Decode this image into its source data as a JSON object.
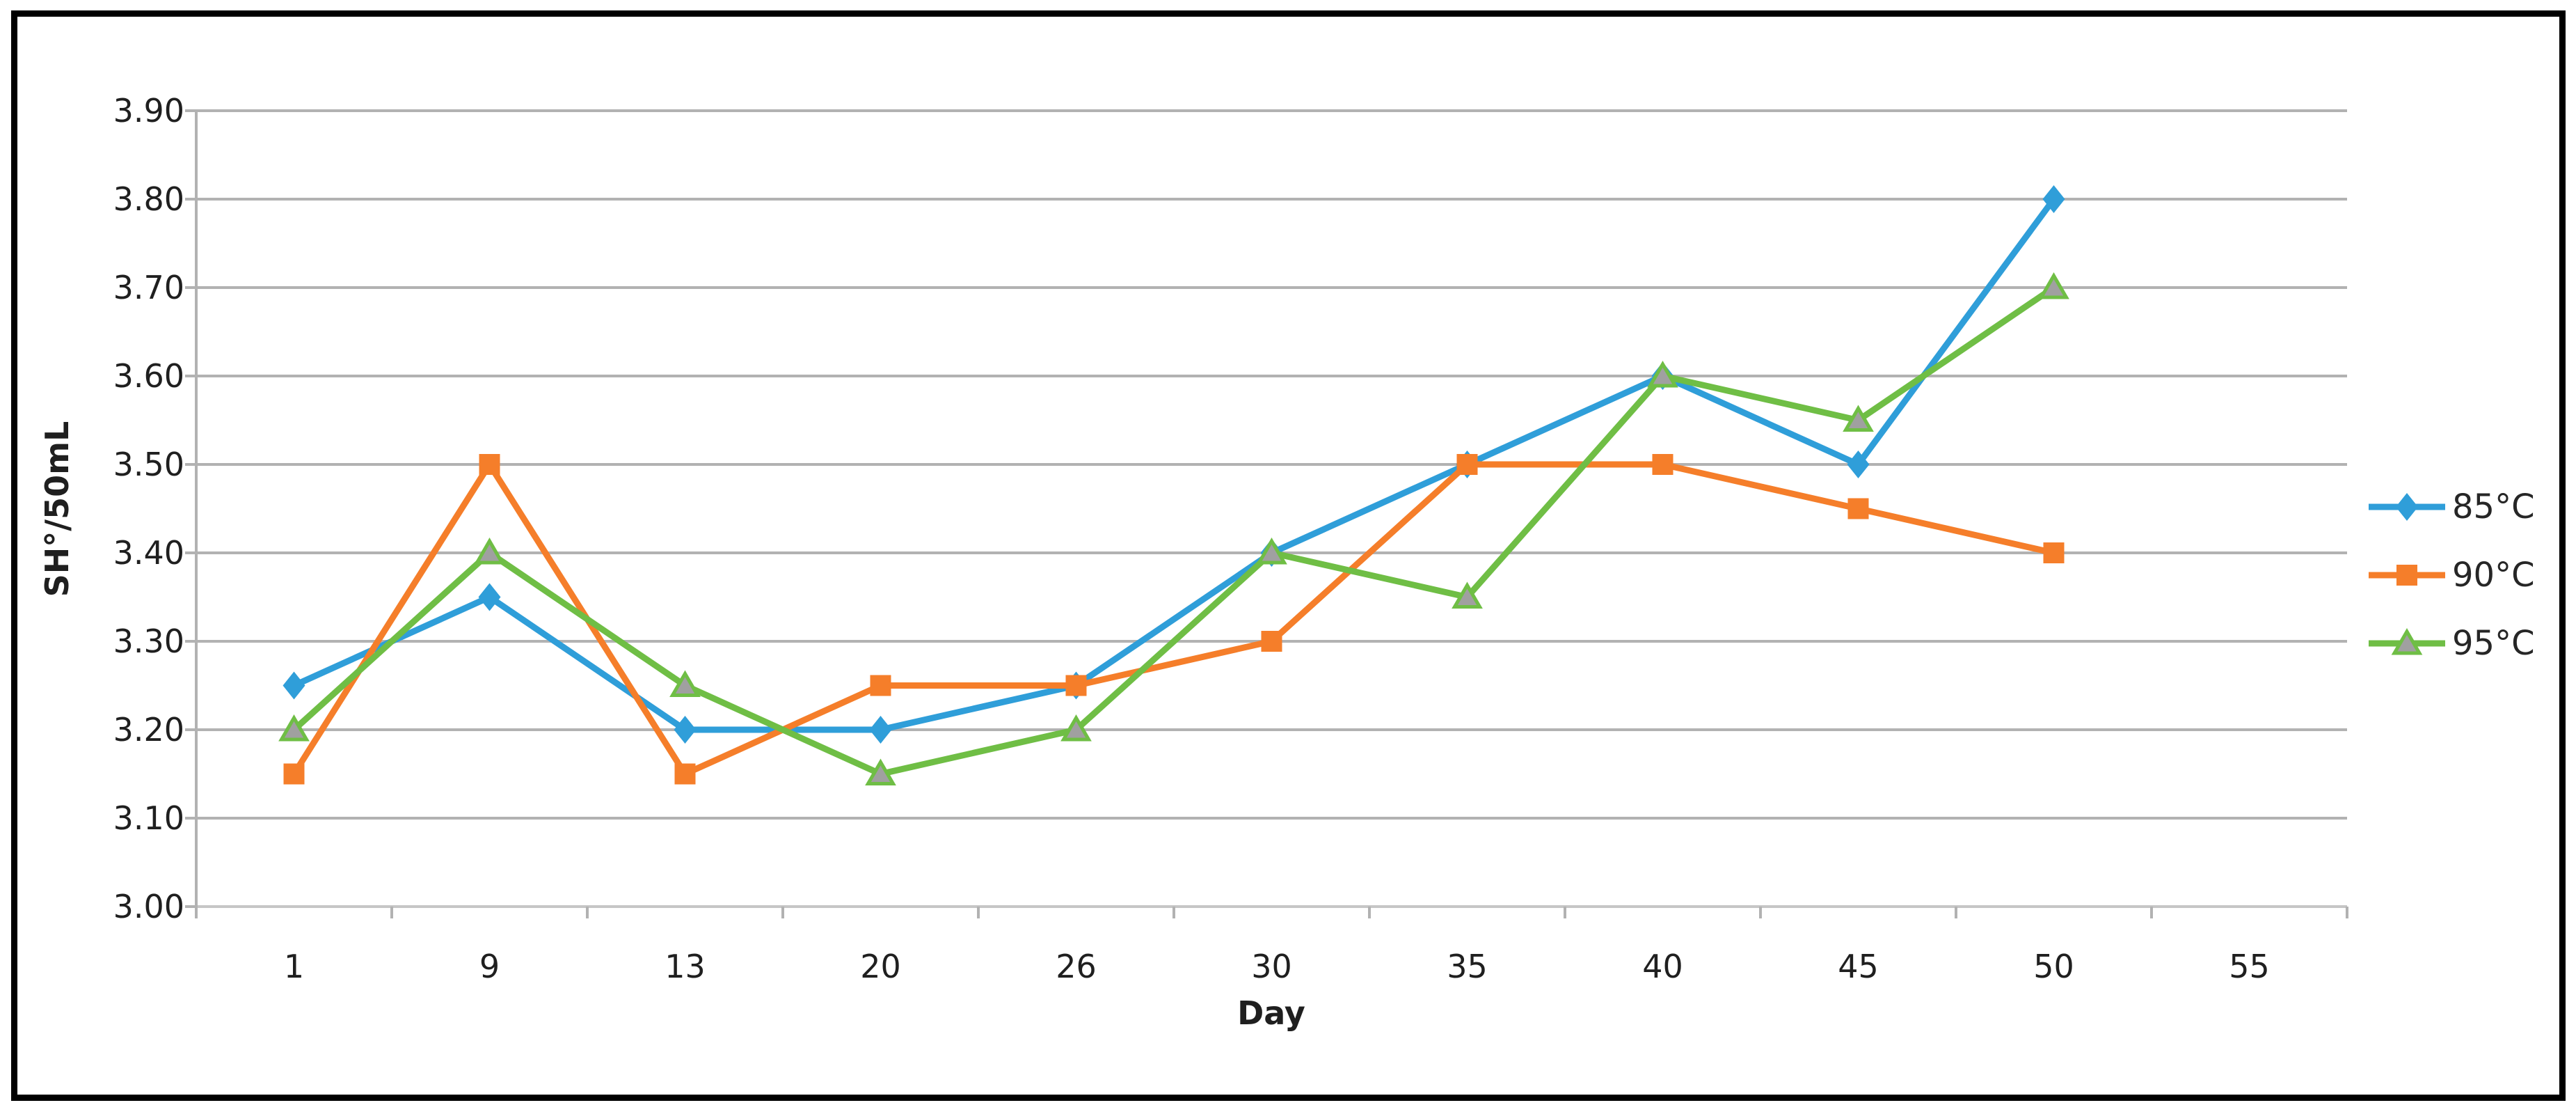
{
  "figure": {
    "background": "#ffffff",
    "frame_color": "#000000"
  },
  "chart_data": {
    "type": "line",
    "title": "",
    "xlabel": "Day",
    "ylabel": "SH°/50mL",
    "categories": [
      "1",
      "9",
      "13",
      "20",
      "26",
      "30",
      "35",
      "40",
      "45",
      "50",
      "55"
    ],
    "y_tick_labels": [
      "3.90",
      "3.80",
      "3.70",
      "3.60",
      "3.50",
      "3.40",
      "3.30",
      "3.20",
      "3.10",
      "3.00"
    ],
    "ylim": [
      3.0,
      3.9
    ],
    "y_step": 0.1,
    "grid": "horizontal",
    "legend_position": "right",
    "series": [
      {
        "name": "85°C",
        "marker": "diamond",
        "color": "#2f9ed9",
        "marker_fill": "#2f9ed9",
        "values": [
          3.25,
          3.35,
          3.2,
          3.2,
          3.25,
          3.4,
          3.5,
          3.6,
          3.5,
          3.8,
          null
        ]
      },
      {
        "name": "90°C",
        "marker": "square",
        "color": "#f57e2a",
        "marker_fill": "#f57e2a",
        "values": [
          3.15,
          3.5,
          3.15,
          3.25,
          3.25,
          3.3,
          3.5,
          3.5,
          3.45,
          3.4,
          null
        ]
      },
      {
        "name": "95°C",
        "marker": "triangle",
        "color": "#6fbe45",
        "marker_fill": "#a0a0a0",
        "values": [
          3.2,
          3.4,
          3.25,
          3.15,
          3.2,
          3.4,
          3.35,
          3.6,
          3.55,
          3.7,
          null
        ]
      }
    ],
    "colors": {
      "gridline": "#b2b2b2",
      "axis_line": "#c6c6c6",
      "tick": "#b2b2b2",
      "text": "#1f1f1f"
    }
  }
}
